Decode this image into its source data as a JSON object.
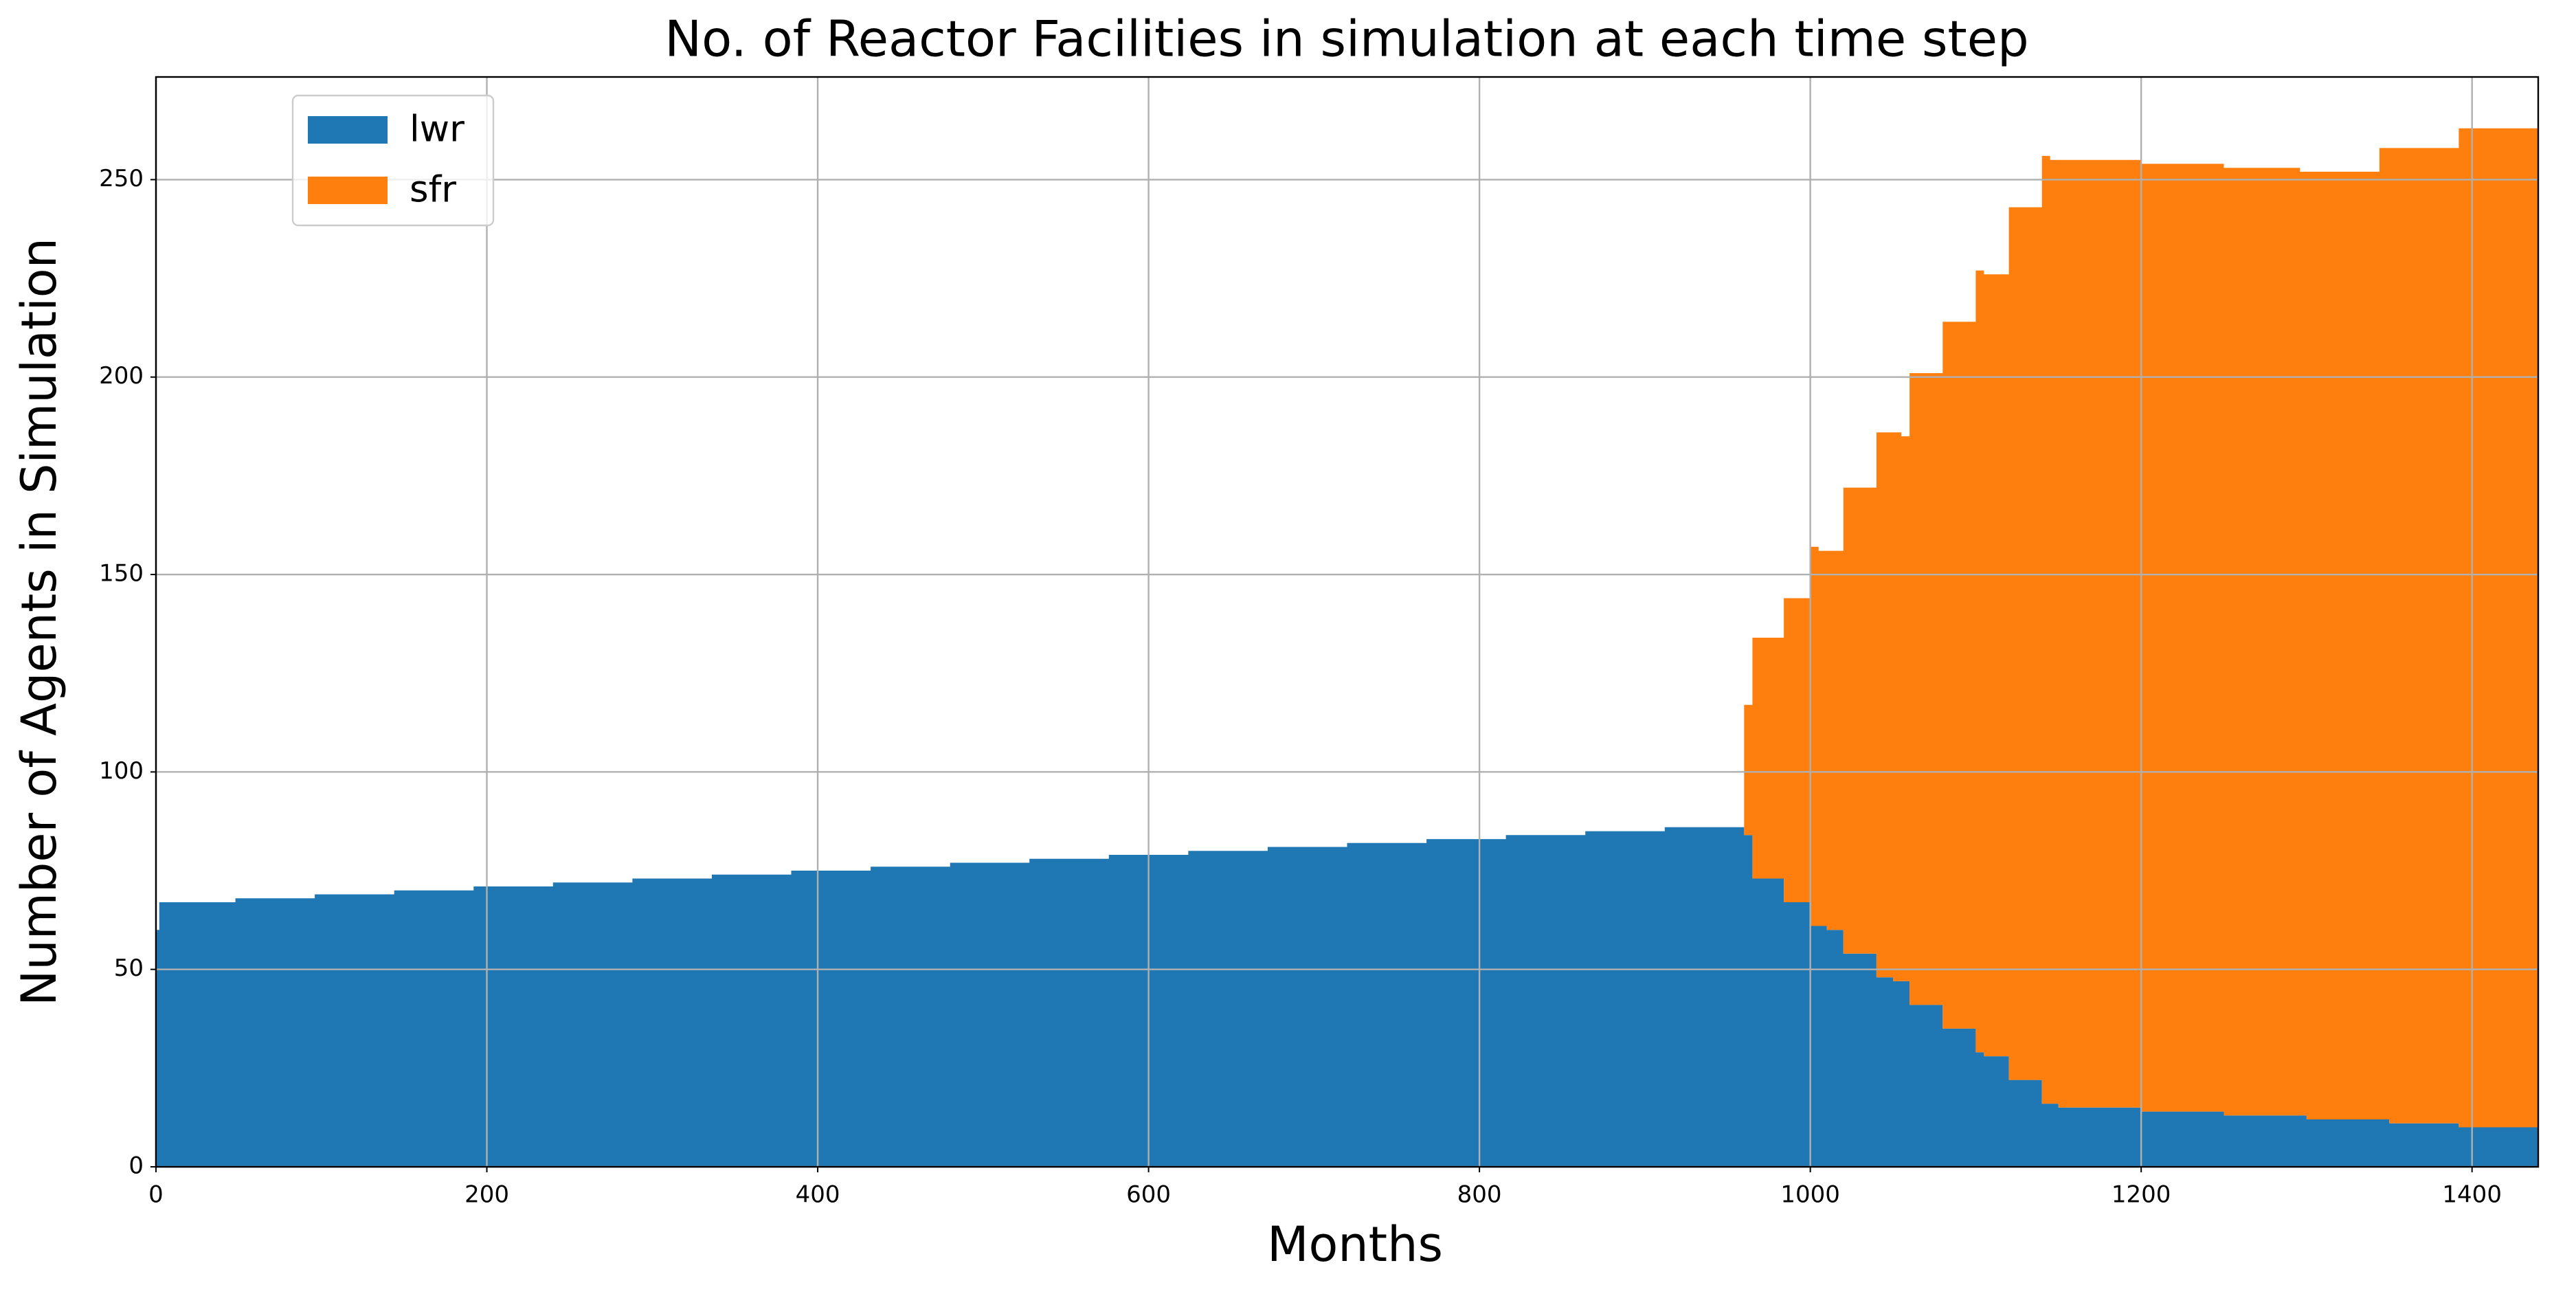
{
  "chart_data": {
    "type": "stackplot",
    "drawstyle": "steps-post",
    "title": "No. of Reactor Facilities in simulation at each time step",
    "xlabel": "Months",
    "ylabel": "Number of Agents in Simulation",
    "x": [
      0,
      2,
      48,
      96,
      144,
      192,
      240,
      288,
      336,
      384,
      432,
      480,
      528,
      576,
      624,
      672,
      720,
      768,
      816,
      864,
      912,
      960,
      965,
      984,
      1000,
      1005,
      1010,
      1020,
      1040,
      1050,
      1055,
      1060,
      1080,
      1100,
      1105,
      1120,
      1140,
      1145,
      1150,
      1200,
      1250,
      1296,
      1300,
      1344,
      1350,
      1392,
      1440
    ],
    "series": [
      {
        "name": "lwr",
        "color": "#1f77b4",
        "values": [
          60,
          67,
          68,
          69,
          70,
          71,
          72,
          73,
          74,
          75,
          76,
          77,
          78,
          79,
          80,
          81,
          82,
          83,
          84,
          85,
          86,
          84,
          73,
          67,
          61,
          61,
          60,
          54,
          48,
          47,
          47,
          41,
          35,
          29,
          28,
          22,
          16,
          16,
          15,
          14,
          13,
          13,
          12,
          12,
          11,
          10,
          10
        ]
      },
      {
        "name": "sfr",
        "color": "#ff7f0e",
        "values": [
          0,
          0,
          0,
          0,
          0,
          0,
          0,
          0,
          0,
          0,
          0,
          0,
          0,
          0,
          0,
          0,
          0,
          0,
          0,
          0,
          0,
          33,
          61,
          77,
          96,
          95,
          96,
          118,
          138,
          139,
          138,
          160,
          179,
          198,
          198,
          221,
          240,
          239,
          240,
          240,
          240,
          239,
          240,
          246,
          247,
          253,
          253
        ]
      }
    ],
    "xlim": [
      0,
      1440
    ],
    "ylim": [
      0,
      276
    ],
    "xticks": [
      0,
      200,
      400,
      600,
      800,
      1000,
      1200,
      1400
    ],
    "yticks": [
      0,
      50,
      100,
      150,
      200,
      250
    ],
    "grid": true,
    "legend": "upper left"
  }
}
